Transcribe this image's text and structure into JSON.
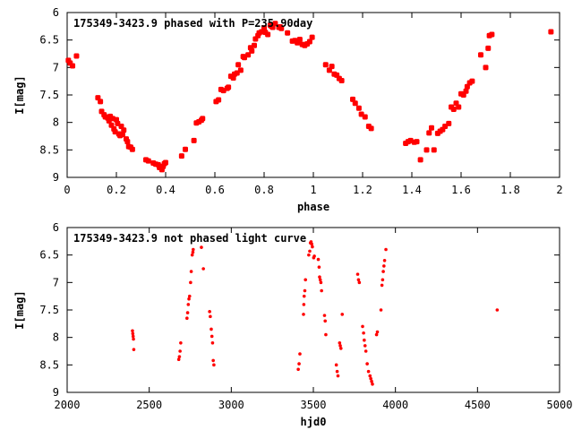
{
  "chart_data": [
    {
      "type": "scatter",
      "title": "175349-3423.9 phased with P=235.90day",
      "xlabel": "phase",
      "ylabel": "I[mag]",
      "xlim": [
        0,
        2
      ],
      "ylim": [
        6,
        9
      ],
      "y_inverted": true,
      "xticks": [
        0,
        0.2,
        0.4,
        0.6,
        0.8,
        1,
        1.2,
        1.4,
        1.6,
        1.8,
        2
      ],
      "yticks": [
        6,
        6.5,
        7,
        7.5,
        8,
        8.5,
        9
      ],
      "xtick_labels": [
        "0",
        "0.2",
        "0.4",
        "0.6",
        "0.8",
        "1",
        "1.2",
        "1.4",
        "1.6",
        "1.8",
        "2"
      ],
      "ytick_labels": [
        "6",
        "6.5",
        "7",
        "7.5",
        "8",
        "8.5",
        "9"
      ],
      "marker_color": "#ff0000",
      "series": [
        {
          "points": [
            [
              0.005,
              6.87
            ],
            [
              0.012,
              6.92
            ],
            [
              0.022,
              6.97
            ],
            [
              0.038,
              6.79
            ],
            [
              0.125,
              7.55
            ],
            [
              0.135,
              7.62
            ],
            [
              0.14,
              7.8
            ],
            [
              0.15,
              7.86
            ],
            [
              0.155,
              7.9
            ],
            [
              0.165,
              7.92
            ],
            [
              0.17,
              7.97
            ],
            [
              0.175,
              7.89
            ],
            [
              0.18,
              8.05
            ],
            [
              0.185,
              7.93
            ],
            [
              0.19,
              8.12
            ],
            [
              0.195,
              8.17
            ],
            [
              0.2,
              7.95
            ],
            [
              0.205,
              8.02
            ],
            [
              0.21,
              8.21
            ],
            [
              0.215,
              8.24
            ],
            [
              0.22,
              8.07
            ],
            [
              0.225,
              8.22
            ],
            [
              0.23,
              8.14
            ],
            [
              0.24,
              8.3
            ],
            [
              0.245,
              8.35
            ],
            [
              0.25,
              8.44
            ],
            [
              0.258,
              8.45
            ],
            [
              0.265,
              8.49
            ],
            [
              0.32,
              8.68
            ],
            [
              0.33,
              8.7
            ],
            [
              0.35,
              8.74
            ],
            [
              0.36,
              8.76
            ],
            [
              0.37,
              8.77
            ],
            [
              0.375,
              8.82
            ],
            [
              0.38,
              8.8
            ],
            [
              0.385,
              8.86
            ],
            [
              0.39,
              8.8
            ],
            [
              0.395,
              8.75
            ],
            [
              0.4,
              8.73
            ],
            [
              0.465,
              8.61
            ],
            [
              0.48,
              8.49
            ],
            [
              0.515,
              8.33
            ],
            [
              0.525,
              8.01
            ],
            [
              0.535,
              7.99
            ],
            [
              0.545,
              7.96
            ],
            [
              0.55,
              7.93
            ],
            [
              0.605,
              7.62
            ],
            [
              0.615,
              7.59
            ],
            [
              0.625,
              7.4
            ],
            [
              0.635,
              7.42
            ],
            [
              0.65,
              7.38
            ],
            [
              0.655,
              7.36
            ],
            [
              0.665,
              7.16
            ],
            [
              0.675,
              7.19
            ],
            [
              0.68,
              7.12
            ],
            [
              0.69,
              7.1
            ],
            [
              0.695,
              6.95
            ],
            [
              0.705,
              7.05
            ],
            [
              0.715,
              6.8
            ],
            [
              0.72,
              6.82
            ],
            [
              0.735,
              6.77
            ],
            [
              0.745,
              6.64
            ],
            [
              0.75,
              6.7
            ],
            [
              0.76,
              6.6
            ],
            [
              0.765,
              6.48
            ],
            [
              0.775,
              6.42
            ],
            [
              0.78,
              6.37
            ],
            [
              0.79,
              6.35
            ],
            [
              0.8,
              6.28
            ],
            [
              0.805,
              6.36
            ],
            [
              0.815,
              6.4
            ],
            [
              0.825,
              6.23
            ],
            [
              0.83,
              6.25
            ],
            [
              0.835,
              6.27
            ],
            [
              0.845,
              6.2
            ],
            [
              0.86,
              6.27
            ],
            [
              0.865,
              6.26
            ],
            [
              0.87,
              6.29
            ],
            [
              0.895,
              6.37
            ],
            [
              0.915,
              6.52
            ],
            [
              0.925,
              6.51
            ],
            [
              0.935,
              6.55
            ],
            [
              0.945,
              6.49
            ],
            [
              0.955,
              6.58
            ],
            [
              0.965,
              6.6
            ],
            [
              0.975,
              6.57
            ],
            [
              0.985,
              6.53
            ],
            [
              0.995,
              6.45
            ],
            [
              1.05,
              6.95
            ],
            [
              1.065,
              7.05
            ],
            [
              1.075,
              6.98
            ],
            [
              1.085,
              7.12
            ],
            [
              1.095,
              7.14
            ],
            [
              1.105,
              7.2
            ],
            [
              1.115,
              7.24
            ],
            [
              1.16,
              7.58
            ],
            [
              1.17,
              7.65
            ],
            [
              1.185,
              7.74
            ],
            [
              1.195,
              7.85
            ],
            [
              1.21,
              7.9
            ],
            [
              1.225,
              8.07
            ],
            [
              1.235,
              8.11
            ],
            [
              1.375,
              8.38
            ],
            [
              1.385,
              8.35
            ],
            [
              1.395,
              8.33
            ],
            [
              1.41,
              8.36
            ],
            [
              1.42,
              8.35
            ],
            [
              1.435,
              8.68
            ],
            [
              1.46,
              8.5
            ],
            [
              1.47,
              8.19
            ],
            [
              1.48,
              8.1
            ],
            [
              1.49,
              8.5
            ],
            [
              1.505,
              8.2
            ],
            [
              1.515,
              8.16
            ],
            [
              1.525,
              8.13
            ],
            [
              1.535,
              8.07
            ],
            [
              1.55,
              8.02
            ],
            [
              1.56,
              7.72
            ],
            [
              1.57,
              7.76
            ],
            [
              1.58,
              7.65
            ],
            [
              1.59,
              7.72
            ],
            [
              1.6,
              7.48
            ],
            [
              1.61,
              7.5
            ],
            [
              1.62,
              7.43
            ],
            [
              1.625,
              7.35
            ],
            [
              1.635,
              7.28
            ],
            [
              1.645,
              7.25
            ],
            [
              1.68,
              6.77
            ],
            [
              1.7,
              7.0
            ],
            [
              1.71,
              6.65
            ],
            [
              1.715,
              6.42
            ],
            [
              1.725,
              6.4
            ],
            [
              1.965,
              6.35
            ]
          ]
        }
      ]
    },
    {
      "type": "scatter",
      "title": "175349-3423.9 not phased light curve",
      "xlabel": "hjd0",
      "ylabel": "I[mag]",
      "xlim": [
        2000,
        5000
      ],
      "ylim": [
        6,
        9
      ],
      "y_inverted": true,
      "xticks": [
        2000,
        2500,
        3000,
        3500,
        4000,
        4500,
        5000
      ],
      "yticks": [
        6,
        6.5,
        7,
        7.5,
        8,
        8.5,
        9
      ],
      "xtick_labels": [
        "2000",
        "2500",
        "3000",
        "3500",
        "4000",
        "4500",
        "5000"
      ],
      "ytick_labels": [
        "6",
        "6.5",
        "7",
        "7.5",
        "8",
        "8.5",
        "9"
      ],
      "marker_color": "#ff0000",
      "series": [
        {
          "points": [
            [
              2398,
              7.88
            ],
            [
              2400,
              7.93
            ],
            [
              2402,
              7.98
            ],
            [
              2404,
              8.03
            ],
            [
              2406,
              8.22
            ],
            [
              2680,
              8.4
            ],
            [
              2684,
              8.35
            ],
            [
              2688,
              8.25
            ],
            [
              2692,
              8.1
            ],
            [
              2730,
              7.65
            ],
            [
              2734,
              7.55
            ],
            [
              2738,
              7.4
            ],
            [
              2742,
              7.3
            ],
            [
              2746,
              7.25
            ],
            [
              2752,
              7.0
            ],
            [
              2756,
              6.8
            ],
            [
              2762,
              6.5
            ],
            [
              2766,
              6.45
            ],
            [
              2768,
              6.4
            ],
            [
              2818,
              6.36
            ],
            [
              2830,
              6.75
            ],
            [
              2868,
              7.53
            ],
            [
              2872,
              7.62
            ],
            [
              2878,
              7.85
            ],
            [
              2882,
              7.98
            ],
            [
              2886,
              8.1
            ],
            [
              2890,
              8.42
            ],
            [
              2894,
              8.5
            ],
            [
              3408,
              8.58
            ],
            [
              3413,
              8.48
            ],
            [
              3418,
              8.3
            ],
            [
              3440,
              7.58
            ],
            [
              3442,
              7.4
            ],
            [
              3444,
              7.25
            ],
            [
              3448,
              7.15
            ],
            [
              3452,
              6.95
            ],
            [
              3472,
              6.5
            ],
            [
              3478,
              6.43
            ],
            [
              3482,
              6.28
            ],
            [
              3486,
              6.26
            ],
            [
              3490,
              6.3
            ],
            [
              3494,
              6.35
            ],
            [
              3502,
              6.55
            ],
            [
              3506,
              6.52
            ],
            [
              3530,
              6.58
            ],
            [
              3535,
              6.72
            ],
            [
              3538,
              6.9
            ],
            [
              3542,
              6.95
            ],
            [
              3546,
              7.0
            ],
            [
              3550,
              7.15
            ],
            [
              3568,
              7.6
            ],
            [
              3572,
              7.7
            ],
            [
              3576,
              7.95
            ],
            [
              3640,
              8.5
            ],
            [
              3645,
              8.62
            ],
            [
              3650,
              8.7
            ],
            [
              3660,
              8.1
            ],
            [
              3664,
              8.15
            ],
            [
              3668,
              8.2
            ],
            [
              3676,
              7.58
            ],
            [
              3770,
              6.85
            ],
            [
              3775,
              6.95
            ],
            [
              3780,
              7.0
            ],
            [
              3800,
              7.8
            ],
            [
              3806,
              7.92
            ],
            [
              3810,
              8.05
            ],
            [
              3815,
              8.15
            ],
            [
              3820,
              8.25
            ],
            [
              3828,
              8.48
            ],
            [
              3836,
              8.62
            ],
            [
              3845,
              8.7
            ],
            [
              3850,
              8.75
            ],
            [
              3855,
              8.8
            ],
            [
              3860,
              8.85
            ],
            [
              3885,
              7.95
            ],
            [
              3890,
              7.9
            ],
            [
              3912,
              7.5
            ],
            [
              3918,
              7.05
            ],
            [
              3922,
              6.95
            ],
            [
              3926,
              6.8
            ],
            [
              3930,
              6.7
            ],
            [
              3934,
              6.6
            ],
            [
              3942,
              6.4
            ],
            [
              4620,
              7.5
            ]
          ]
        }
      ]
    }
  ]
}
